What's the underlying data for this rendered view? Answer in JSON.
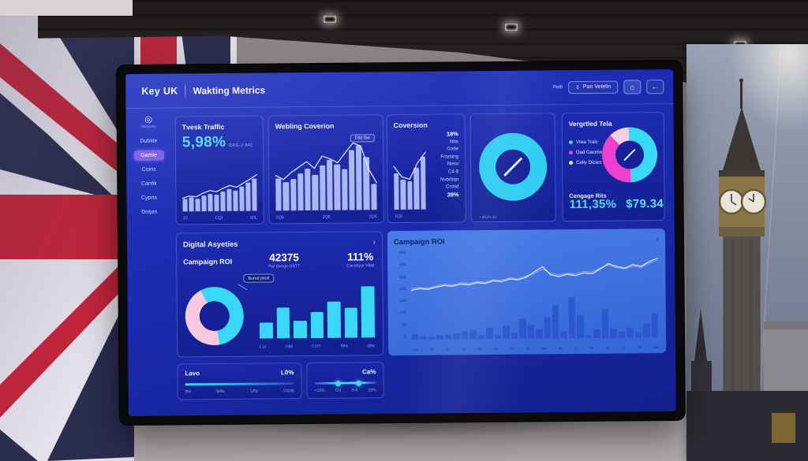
{
  "window": {
    "brand": "Key UK",
    "title": "Wakting Metrics",
    "header_right_text": "Peiti",
    "export_button": "Pan Vetelin",
    "export_icon": "download-icon",
    "square_icon": "home-icon",
    "back_button": "←"
  },
  "sidebar": {
    "logo_icon": "target-logo-icon",
    "logo_label": "Delapoku",
    "items": [
      {
        "label": "Dubkle",
        "active": false
      },
      {
        "label": "Gamle",
        "active": true
      },
      {
        "label": "Coins",
        "active": false
      },
      {
        "label": "Cantik",
        "active": false
      },
      {
        "label": "Cyprts",
        "active": false
      },
      {
        "label": "Dntjas",
        "active": false
      }
    ]
  },
  "panels": {
    "traffic": {
      "title": "Tvesk Traffic",
      "value": "5,98%",
      "delta": "EAG-2 841"
    },
    "webling": {
      "title": "Webling Coverion",
      "badge": "Ditd Bw"
    },
    "coversion": {
      "title": "Coversion",
      "stats": [
        "18%",
        "Nbs",
        "Code",
        "Framing",
        "Nietu",
        "C4-8",
        "Nvbrbqn",
        "Crotid",
        "39%"
      ]
    },
    "gauge": {
      "caption": "• 48 24-44"
    },
    "vergrtled": {
      "title": "Vergrtled Tela",
      "legend": [
        {
          "label": "Vrea Tralc",
          "color": "#38d8f6"
        },
        {
          "label": "Dad Gaonie",
          "color": "#ee3fd0"
        },
        {
          "label": "Celly Dicies",
          "color": "#f0e0c6"
        }
      ],
      "metric_label": "Cengage Rits",
      "metric_value": "111,35%",
      "metric_value2": "$79.34"
    },
    "digital": {
      "title": "Digital Asyeties",
      "chevron": "›",
      "subtitle": "Campaign ROI",
      "stat1_value": "42375",
      "stat1_label": "Fwl Gvege OBTT",
      "stat2_value": "111%",
      "stat2_label": "Cacobyqr VBM",
      "tooltip": "Bumd pesit"
    },
    "roi": {
      "title": "Campaign ROI",
      "chevron": "›"
    },
    "slider1": {
      "label": "Lavo",
      "value": "L0%",
      "ticks": [
        "0%",
        "50%",
        "12%",
        "C/235"
      ]
    },
    "slider2": {
      "label": "Ca%",
      "ticks": [
        "<12%",
        "C/1",
        "5-9",
        "23%"
      ]
    }
  },
  "colors": {
    "accent_cyan": "#38d8f6",
    "accent_magenta": "#ee3fd0",
    "accent_pink": "#f8c9de",
    "accent_cream": "#f0e0c6",
    "active_purple": "#7e5bef",
    "screen_blue": "#1b2aae",
    "roi_panel_blue": "#4a7ce8",
    "roi_bar_blue": "#2b58cc"
  },
  "chart_data": [
    {
      "id": "traffic_chart",
      "type": "bar",
      "values": [
        28,
        32,
        29,
        35,
        40,
        37,
        44,
        50,
        46,
        56,
        64,
        74
      ],
      "line": [
        30,
        35,
        33,
        41,
        47,
        44,
        52,
        58,
        54,
        63,
        72,
        82
      ],
      "x_labels": [
        "15",
        "CQl",
        "20L"
      ]
    },
    {
      "id": "webling_chart",
      "type": "bar",
      "values": [
        48,
        42,
        46,
        55,
        62,
        52,
        66,
        74,
        68,
        60,
        88,
        95,
        78,
        38
      ],
      "line": [
        52,
        46,
        56,
        64,
        72,
        62,
        80,
        76,
        70,
        85,
        99,
        94,
        60,
        40
      ],
      "x_labels": [
        "2Q5",
        "2Q5",
        "2Q5"
      ]
    },
    {
      "id": "coversion_chart",
      "type": "bar",
      "values": [
        62,
        52,
        48,
        72,
        90
      ],
      "line": [
        74,
        56,
        52,
        80,
        98
      ],
      "x_labels": [
        "7Q5"
      ]
    },
    {
      "id": "engagement_gauge",
      "type": "donut",
      "start_deg": 0,
      "needle_deg": 45,
      "slices": [
        {
          "label": "ring",
          "value": 100,
          "color": "#2fcdf2"
        }
      ]
    },
    {
      "id": "vergrtled_donut",
      "type": "donut",
      "start_deg": -45,
      "slices": [
        {
          "label": "Celly Dicies",
          "value": 12,
          "color": "#f6cde4"
        },
        {
          "label": "Vrea Tralc",
          "value": 50,
          "color": "#38d8f6"
        },
        {
          "label": "Dad Gaonie",
          "value": 38,
          "color": "#ee3fd0"
        }
      ]
    },
    {
      "id": "roi_donut",
      "type": "donut",
      "start_deg": 170,
      "slices": [
        {
          "label": "segment-pink",
          "value": 45,
          "color": "#f8c9de"
        },
        {
          "label": "segment-cyan",
          "value": 55,
          "color": "#38d8f6"
        }
      ]
    },
    {
      "id": "roi_mini_bars",
      "type": "bar",
      "values": [
        30,
        58,
        33,
        48,
        68,
        56,
        95
      ],
      "x_labels": [
        "L1s",
        "7d9l",
        "T3?7",
        "70%",
        "28%"
      ]
    },
    {
      "id": "roi_trend",
      "type": "line",
      "y_ticks": [
        "350",
        "300",
        "250",
        "200",
        "150",
        "100",
        "50",
        "0"
      ],
      "x_ticks": [
        "1Ja",
        "3d",
        "2u",
        "7y",
        "9d",
        "1w",
        "7u",
        "2r",
        "Ma",
        "8d",
        "2t",
        "9u",
        "1q",
        "23",
        "7d",
        "9w"
      ],
      "series": [
        {
          "name": "primary",
          "values": [
            10,
            14,
            12,
            17,
            21,
            19,
            24,
            22,
            27,
            25,
            31,
            29,
            35,
            33,
            39,
            52,
            64,
            44,
            40,
            45,
            42,
            48,
            46,
            57,
            70,
            63,
            59,
            67,
            63,
            74,
            82
          ]
        },
        {
          "name": "secondary",
          "values": [
            14,
            17,
            15,
            20,
            24,
            22,
            27,
            25,
            30,
            28,
            34,
            32,
            38,
            36,
            42,
            48,
            58,
            48,
            44,
            48,
            46,
            52,
            50,
            60,
            66,
            60,
            57,
            63,
            60,
            70,
            78
          ]
        }
      ],
      "bars": [
        12,
        7,
        5,
        8,
        10,
        12,
        16,
        19,
        9,
        24,
        8,
        28,
        13,
        42,
        30,
        20,
        46,
        70,
        15,
        88,
        48,
        7,
        18,
        62,
        20,
        14,
        22,
        12,
        30,
        52
      ]
    },
    {
      "id": "level_slider",
      "type": "slider",
      "progress_pct": 97
    },
    {
      "id": "range_slider",
      "type": "slider",
      "dots_pct": [
        38,
        72
      ]
    }
  ]
}
